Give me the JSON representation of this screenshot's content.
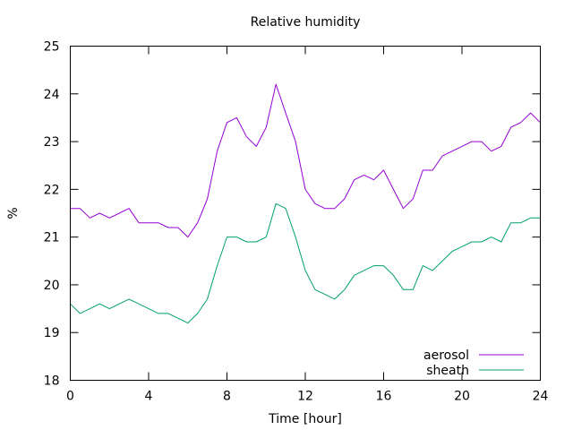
{
  "chart_data": {
    "type": "line",
    "title": "Relative humidity",
    "xlabel": "Time [hour]",
    "ylabel": "%",
    "xlim": [
      0,
      24
    ],
    "ylim": [
      18,
      25
    ],
    "xticks": [
      "0",
      "4",
      "8",
      "12",
      "16",
      "20",
      "24"
    ],
    "yticks": [
      "18",
      "19",
      "20",
      "21",
      "22",
      "23",
      "24",
      "25"
    ],
    "grid": false,
    "legend": "bottom-right",
    "series": [
      {
        "name": "aerosol",
        "color": "#9400d3",
        "x": [
          0,
          0.5,
          1,
          1.5,
          2,
          2.5,
          3,
          3.5,
          4,
          4.5,
          5,
          5.5,
          6,
          6.5,
          7,
          7.5,
          8,
          8.5,
          9,
          9.5,
          10,
          10.5,
          11,
          11.5,
          12,
          12.5,
          13,
          13.5,
          14,
          14.5,
          15,
          15.5,
          16,
          16.5,
          17,
          17.5,
          18,
          18.5,
          19,
          19.5,
          20,
          20.5,
          21,
          21.5,
          22,
          22.5,
          23,
          23.5,
          24
        ],
        "y": [
          21.6,
          21.6,
          21.4,
          21.5,
          21.4,
          21.5,
          21.6,
          21.3,
          21.3,
          21.3,
          21.2,
          21.2,
          21.0,
          21.3,
          21.8,
          22.8,
          23.4,
          23.5,
          23.1,
          22.9,
          23.3,
          24.2,
          23.6,
          23.0,
          22.0,
          21.7,
          21.6,
          21.6,
          21.8,
          22.2,
          22.3,
          22.2,
          22.4,
          22.0,
          21.6,
          21.8,
          22.4,
          22.4,
          22.7,
          22.8,
          22.9,
          23.0,
          23.0,
          22.8,
          22.9,
          23.3,
          23.4,
          23.6,
          23.4
        ]
      },
      {
        "name": "sheath",
        "color": "#009e73",
        "x": [
          0,
          0.5,
          1,
          1.5,
          2,
          2.5,
          3,
          3.5,
          4,
          4.5,
          5,
          5.5,
          6,
          6.5,
          7,
          7.5,
          8,
          8.5,
          9,
          9.5,
          10,
          10.5,
          11,
          11.5,
          12,
          12.5,
          13,
          13.5,
          14,
          14.5,
          15,
          15.5,
          16,
          16.5,
          17,
          17.5,
          18,
          18.5,
          19,
          19.5,
          20,
          20.5,
          21,
          21.5,
          22,
          22.5,
          23,
          23.5,
          24
        ],
        "y": [
          19.6,
          19.4,
          19.5,
          19.6,
          19.5,
          19.6,
          19.7,
          19.6,
          19.5,
          19.4,
          19.4,
          19.3,
          19.2,
          19.4,
          19.7,
          20.4,
          21.0,
          21.0,
          20.9,
          20.9,
          21.0,
          21.7,
          21.6,
          21.0,
          20.3,
          19.9,
          19.8,
          19.7,
          19.9,
          20.2,
          20.3,
          20.4,
          20.4,
          20.2,
          19.9,
          19.9,
          20.4,
          20.3,
          20.5,
          20.7,
          20.8,
          20.9,
          20.9,
          21.0,
          20.9,
          21.3,
          21.3,
          21.4,
          21.4
        ]
      }
    ]
  }
}
